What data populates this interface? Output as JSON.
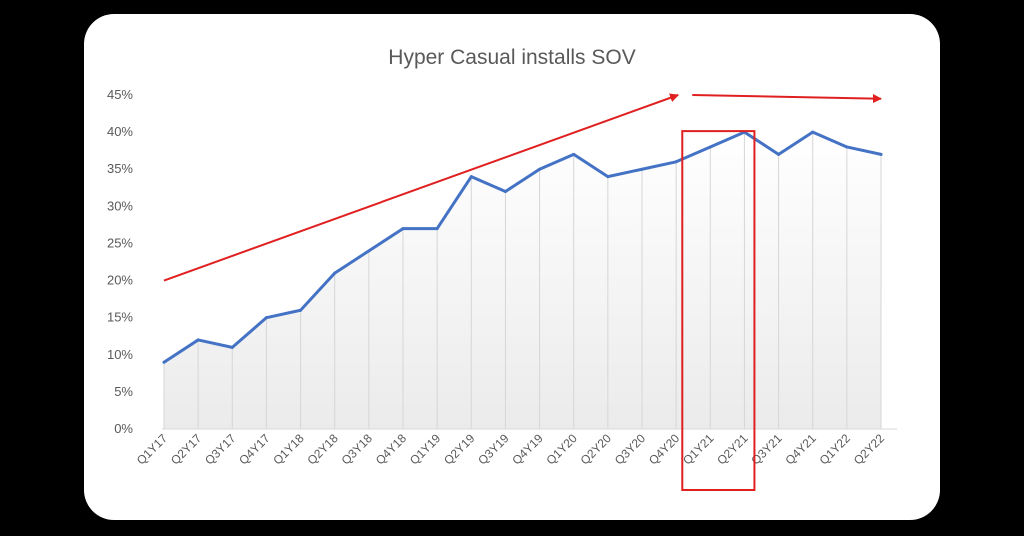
{
  "chart_data": {
    "type": "area",
    "title": "Hyper Casual installs SOV",
    "xlabel": "",
    "ylabel": "",
    "categories": [
      "Q1Y17",
      "Q2Y17",
      "Q3Y17",
      "Q4Y17",
      "Q1Y18",
      "Q2Y18",
      "Q3Y18",
      "Q4Y18",
      "Q1Y19",
      "Q2Y19",
      "Q3Y19",
      "Q4Y19",
      "Q1Y20",
      "Q2Y20",
      "Q3Y20",
      "Q4Y20",
      "Q1Y21",
      "Q2Y21",
      "Q3Y21",
      "Q4Y21",
      "Q1Y22",
      "Q2Y22"
    ],
    "series": [
      {
        "values": [
          9,
          12,
          11,
          15,
          16,
          21,
          24,
          27,
          27,
          34,
          32,
          35,
          37,
          34,
          35,
          36,
          38,
          40,
          37,
          40,
          38,
          37
        ]
      }
    ],
    "ylim": [
      0,
      45
    ],
    "yticks": [
      0,
      5,
      10,
      15,
      20,
      25,
      30,
      35,
      40,
      45
    ],
    "ytick_labels": [
      "0%",
      "5%",
      "10%",
      "15%",
      "20%",
      "25%",
      "30%",
      "35%",
      "40%",
      "45%"
    ],
    "grid": "vertical",
    "legend": "none",
    "colors": {
      "line": "#4472C4",
      "annotation": "#E02020",
      "area_fill": "#F0F0F0",
      "area_stroke": "#D6D6D6"
    },
    "annotations": {
      "trend_arrow_up": {
        "from": {
          "x": "Q1Y17",
          "y": 20
        },
        "to": {
          "x": "Q4Y20",
          "y": 45
        }
      },
      "trend_arrow_flat": {
        "from": {
          "x": "Q1Y21",
          "y": 45
        },
        "to": {
          "x": "Q2Y22",
          "y": 44.5
        }
      },
      "highlight_box": {
        "x_start": "Q1Y21",
        "x_end": "Q2Y21",
        "y_top": 40
      }
    }
  }
}
